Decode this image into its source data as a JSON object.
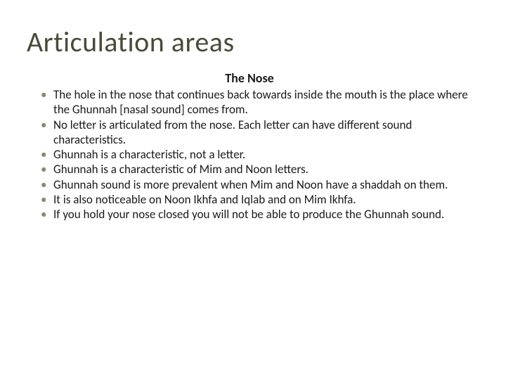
{
  "slide": {
    "title": "Articulation areas",
    "subtitle": "The Nose",
    "title_color": "#4a4a3a",
    "title_fontsize": 40,
    "subtitle_fontsize": 18,
    "body_fontsize": 17,
    "body_color": "#1a1a1a",
    "bullet_color": "#8a8a6a",
    "background_color": "#ffffff",
    "bullets": [
      "The hole in the nose that continues back towards inside the mouth is the place where the Ghunnah [nasal sound] comes from.",
      "No letter is articulated from the nose. Each letter can have different sound characteristics.",
      "Ghunnah is a characteristic, not a letter.",
      "Ghunnah is a characteristic of Mim and Noon letters.",
      "Ghunnah sound is more prevalent when Mim and Noon have a shaddah on them.",
      "It is also noticeable on Noon Ikhfa and Iqlab and on Mim Ikhfa.",
      "If you hold your nose closed you will not be able to produce the Ghunnah sound."
    ]
  }
}
